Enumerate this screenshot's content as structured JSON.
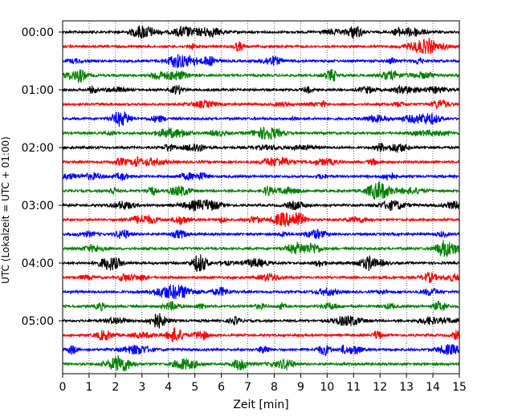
{
  "chart_data": {
    "type": "line",
    "plot_kind": "helicorder seismogram",
    "xlabel": "Zeit  [min]",
    "ylabel": "UTC (Lokalzeit = UTC + 01:00)",
    "xlim": [
      0,
      15
    ],
    "xticks": [
      0,
      1,
      2,
      3,
      4,
      5,
      6,
      7,
      8,
      9,
      10,
      11,
      12,
      13,
      14,
      15
    ],
    "ytick_labels": [
      "00:00",
      "01:00",
      "02:00",
      "03:00",
      "04:00",
      "05:00"
    ],
    "ytick_label_trace_index": [
      0,
      4,
      8,
      12,
      16,
      20
    ],
    "trace_interval_minutes": 15,
    "trace_count": 24,
    "color_cycle": [
      "#000000",
      "#ff0000",
      "#0000ff",
      "#008000"
    ],
    "grid": "vertical dotted lines at each minute",
    "legend": "none"
  }
}
